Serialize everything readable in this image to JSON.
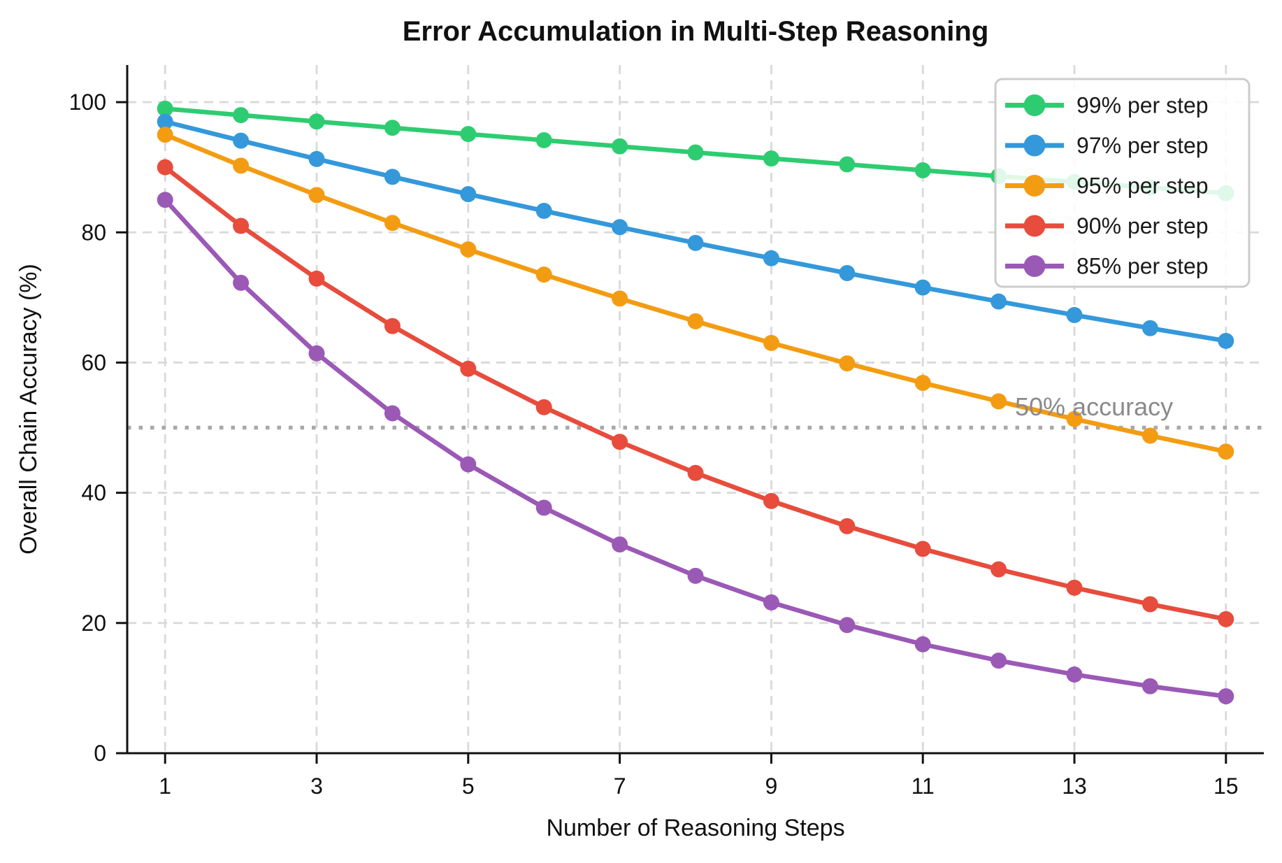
{
  "chart_data": {
    "type": "line",
    "title": "Error Accumulation in Multi-Step Reasoning",
    "xlabel": "Number of Reasoning Steps",
    "ylabel": "Overall Chain Accuracy (%)",
    "x": [
      1,
      2,
      3,
      4,
      5,
      6,
      7,
      8,
      9,
      10,
      11,
      12,
      13,
      14,
      15
    ],
    "xticks": [
      1,
      3,
      5,
      7,
      9,
      11,
      13,
      15
    ],
    "yticks": [
      0,
      20,
      40,
      60,
      80,
      100
    ],
    "xlim": [
      0.5,
      15.5
    ],
    "ylim": [
      0,
      105.7
    ],
    "grid": true,
    "grid_style": "dashed",
    "legend_position": "upper right",
    "series": [
      {
        "name": "99% per step",
        "color": "#2ecc71",
        "values": [
          99.0,
          98.01,
          97.03,
          96.06,
          95.1,
          94.15,
          93.21,
          92.27,
          91.35,
          90.44,
          89.53,
          88.64,
          87.75,
          86.87,
          86.01
        ]
      },
      {
        "name": "97% per step",
        "color": "#3498db",
        "values": [
          97.0,
          94.09,
          91.27,
          88.53,
          85.87,
          83.3,
          80.8,
          78.37,
          76.02,
          73.74,
          71.53,
          69.38,
          67.3,
          65.28,
          63.33
        ]
      },
      {
        "name": "95% per step",
        "color": "#f39c12",
        "values": [
          95.0,
          90.25,
          85.74,
          81.45,
          77.38,
          73.51,
          69.83,
          66.34,
          63.02,
          59.87,
          56.88,
          54.04,
          51.33,
          48.77,
          46.33
        ]
      },
      {
        "name": "90% per step",
        "color": "#e74c3c",
        "values": [
          90.0,
          81.0,
          72.9,
          65.61,
          59.05,
          53.14,
          47.83,
          43.05,
          38.74,
          34.87,
          31.38,
          28.24,
          25.42,
          22.88,
          20.59
        ]
      },
      {
        "name": "85% per step",
        "color": "#9b59b6",
        "values": [
          85.0,
          72.25,
          61.41,
          52.2,
          44.37,
          37.71,
          32.06,
          27.25,
          23.16,
          19.69,
          16.73,
          14.22,
          12.09,
          10.28,
          8.74
        ]
      }
    ],
    "reference_line": {
      "y": 50,
      "label": "50% accuracy",
      "line_color": "#a8a8a8",
      "label_color": "#8a8a8a",
      "style": "dotted"
    },
    "colors": {
      "grid": "#d9d9d9",
      "spine": "#111111",
      "background": "#ffffff",
      "legend_border": "#cccccc"
    }
  }
}
